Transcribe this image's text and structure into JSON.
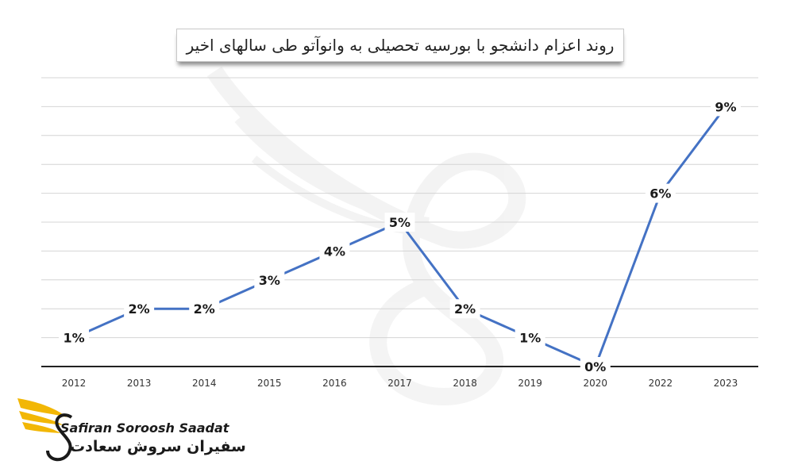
{
  "chart_data": {
    "type": "line",
    "title": "روند اعزام دانشجو با بورسیه تحصیلی به وانوآتو طی سالهای اخیر",
    "categories": [
      "2012",
      "2013",
      "2014",
      "2015",
      "2016",
      "2017",
      "2018",
      "2019",
      "2020",
      "2022",
      "2023"
    ],
    "series": [
      {
        "values": [
          1,
          2,
          2,
          3,
          4,
          5,
          2,
          1,
          0,
          6,
          9
        ],
        "labels": [
          "1%",
          "2%",
          "2%",
          "3%",
          "4%",
          "5%",
          "2%",
          "1%",
          "0%",
          "6%",
          "9%"
        ]
      }
    ],
    "ylim": [
      0,
      10
    ],
    "grid": true,
    "line_color": "#4472C4"
  },
  "logo": {
    "name_en": "Safiran Soroosh Saadat",
    "name_fa": "سفیران سروش سعادت",
    "accent_color": "#F2B705"
  }
}
